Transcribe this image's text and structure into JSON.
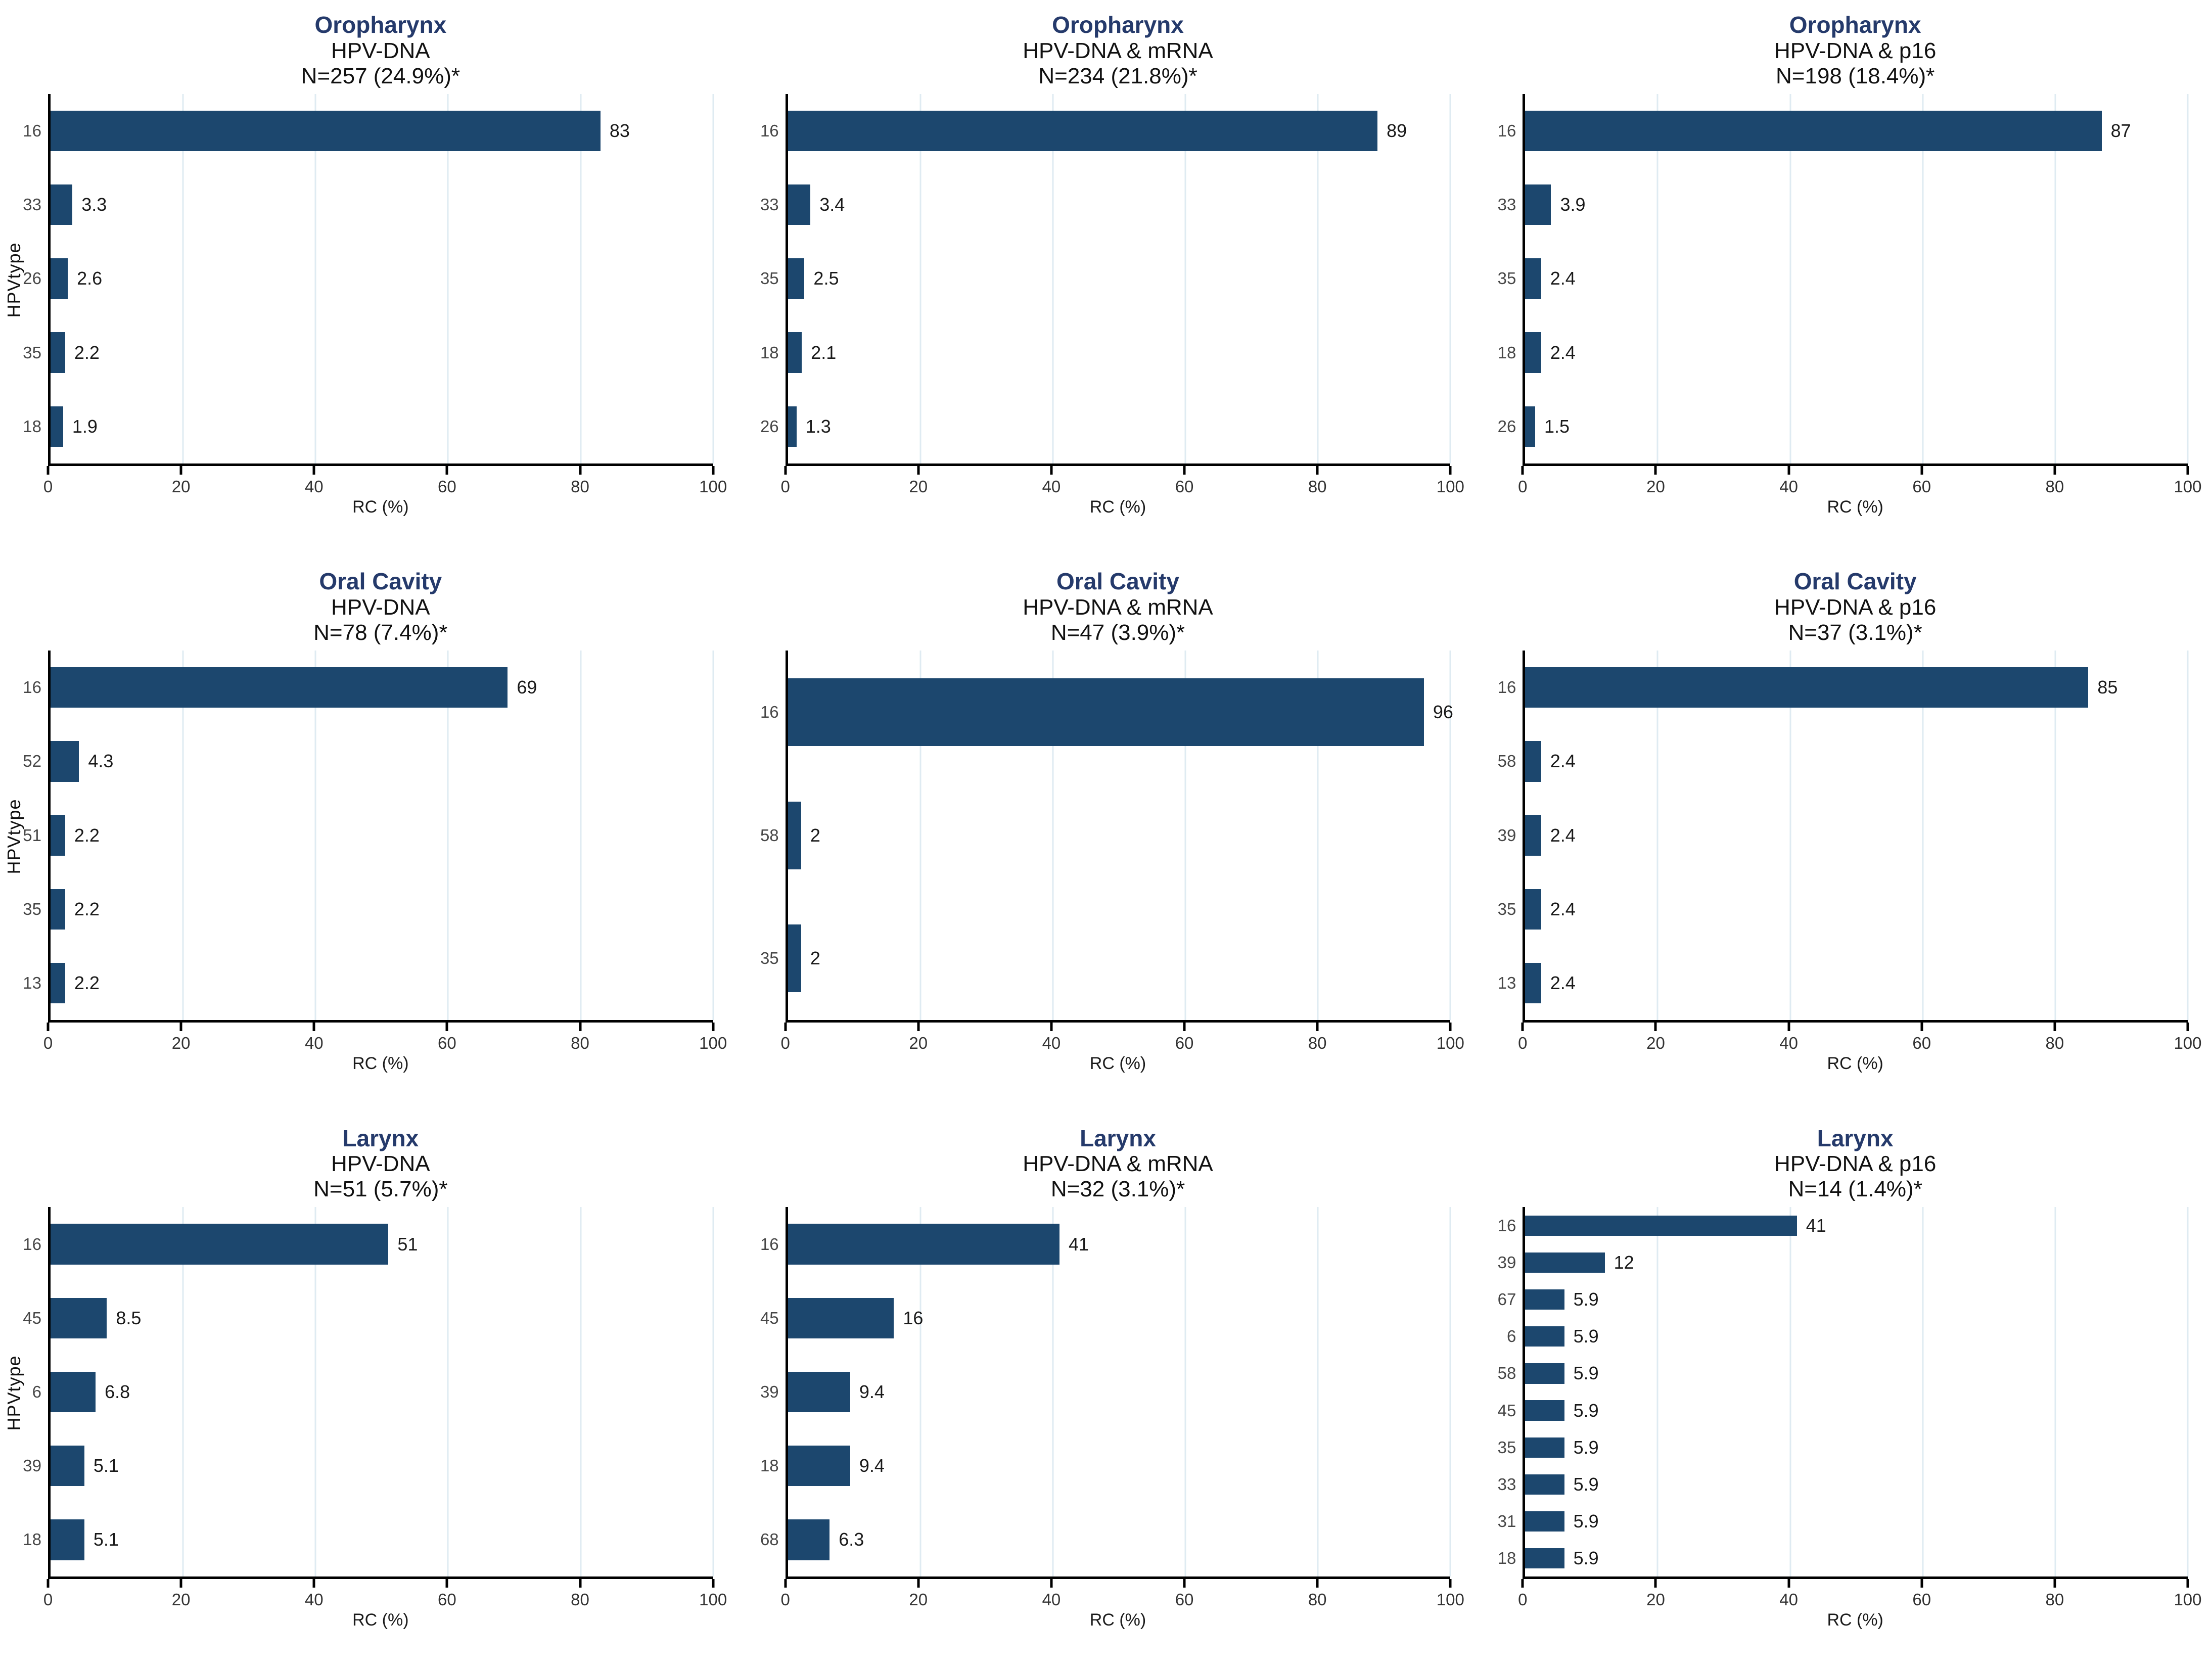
{
  "figure": {
    "background": "#ffffff",
    "bar_color": "#1C476E",
    "site_title_color": "#253A6B",
    "grid_color": "#DFEBF2",
    "axis_color": "#000000",
    "xticks": [
      0,
      20,
      40,
      60,
      80,
      100
    ],
    "xlim": [
      0,
      100
    ],
    "grid": "vertical-major-only",
    "legend": "none"
  },
  "chart_data": [
    {
      "type": "bar",
      "orientation": "horizontal",
      "site": "Oropharynx",
      "method": "HPV-DNA",
      "n_label": "N=257 (24.9%)*",
      "ylabel": "HPVtype",
      "xlabel": "RC (%)",
      "xlim": [
        0,
        100
      ],
      "categories": [
        "16",
        "33",
        "26",
        "35",
        "18"
      ],
      "values": [
        83,
        3.3,
        2.6,
        2.2,
        1.9
      ],
      "value_labels": [
        "83",
        "3.3",
        "2.6",
        "2.2",
        "1.9"
      ]
    },
    {
      "type": "bar",
      "orientation": "horizontal",
      "site": "Oropharynx",
      "method": "HPV-DNA & mRNA",
      "n_label": "N=234 (21.8%)*",
      "ylabel": "",
      "xlabel": "RC (%)",
      "xlim": [
        0,
        100
      ],
      "categories": [
        "16",
        "33",
        "35",
        "18",
        "26"
      ],
      "values": [
        89,
        3.4,
        2.5,
        2.1,
        1.3
      ],
      "value_labels": [
        "89",
        "3.4",
        "2.5",
        "2.1",
        "1.3"
      ]
    },
    {
      "type": "bar",
      "orientation": "horizontal",
      "site": "Oropharynx",
      "method": "HPV-DNA & p16",
      "n_label": "N=198 (18.4%)*",
      "ylabel": "",
      "xlabel": "RC (%)",
      "xlim": [
        0,
        100
      ],
      "categories": [
        "16",
        "33",
        "35",
        "18",
        "26"
      ],
      "values": [
        87,
        3.9,
        2.4,
        2.4,
        1.5
      ],
      "value_labels": [
        "87",
        "3.9",
        "2.4",
        "2.4",
        "1.5"
      ]
    },
    {
      "type": "bar",
      "orientation": "horizontal",
      "site": "Oral Cavity",
      "method": "HPV-DNA",
      "n_label": "N=78 (7.4%)*",
      "ylabel": "HPVtype",
      "xlabel": "RC (%)",
      "xlim": [
        0,
        100
      ],
      "categories": [
        "16",
        "52",
        "51",
        "35",
        "13"
      ],
      "values": [
        69,
        4.3,
        2.2,
        2.2,
        2.2
      ],
      "value_labels": [
        "69",
        "4.3",
        "2.2",
        "2.2",
        "2.2"
      ]
    },
    {
      "type": "bar",
      "orientation": "horizontal",
      "site": "Oral Cavity",
      "method": "HPV-DNA & mRNA",
      "n_label": "N=47 (3.9%)*",
      "ylabel": "",
      "xlabel": "RC (%)",
      "xlim": [
        0,
        100
      ],
      "categories": [
        "16",
        "58",
        "35"
      ],
      "values": [
        96,
        2,
        2
      ],
      "value_labels": [
        "96",
        "2",
        "2"
      ]
    },
    {
      "type": "bar",
      "orientation": "horizontal",
      "site": "Oral Cavity",
      "method": "HPV-DNA & p16",
      "n_label": "N=37 (3.1%)*",
      "ylabel": "",
      "xlabel": "RC (%)",
      "xlim": [
        0,
        100
      ],
      "categories": [
        "16",
        "58",
        "39",
        "35",
        "13"
      ],
      "values": [
        85,
        2.4,
        2.4,
        2.4,
        2.4
      ],
      "value_labels": [
        "85",
        "2.4",
        "2.4",
        "2.4",
        "2.4"
      ]
    },
    {
      "type": "bar",
      "orientation": "horizontal",
      "site": "Larynx",
      "method": "HPV-DNA",
      "n_label": "N=51 (5.7%)*",
      "ylabel": "HPVtype",
      "xlabel": "RC (%)",
      "xlim": [
        0,
        100
      ],
      "categories": [
        "16",
        "45",
        "6",
        "39",
        "18"
      ],
      "values": [
        51,
        8.5,
        6.8,
        5.1,
        5.1
      ],
      "value_labels": [
        "51",
        "8.5",
        "6.8",
        "5.1",
        "5.1"
      ]
    },
    {
      "type": "bar",
      "orientation": "horizontal",
      "site": "Larynx",
      "method": "HPV-DNA & mRNA",
      "n_label": "N=32 (3.1%)*",
      "ylabel": "",
      "xlabel": "RC (%)",
      "xlim": [
        0,
        100
      ],
      "categories": [
        "16",
        "45",
        "39",
        "18",
        "68"
      ],
      "values": [
        41,
        16,
        9.4,
        9.4,
        6.3
      ],
      "value_labels": [
        "41",
        "16",
        "9.4",
        "9.4",
        "6.3"
      ]
    },
    {
      "type": "bar",
      "orientation": "horizontal",
      "site": "Larynx",
      "method": "HPV-DNA & p16",
      "n_label": "N=14 (1.4%)*",
      "ylabel": "",
      "xlabel": "RC (%)",
      "xlim": [
        0,
        100
      ],
      "categories": [
        "16",
        "39",
        "67",
        "6",
        "58",
        "45",
        "35",
        "33",
        "31",
        "18"
      ],
      "values": [
        41,
        12,
        5.9,
        5.9,
        5.9,
        5.9,
        5.9,
        5.9,
        5.9,
        5.9
      ],
      "value_labels": [
        "41",
        "12",
        "5.9",
        "5.9",
        "5.9",
        "5.9",
        "5.9",
        "5.9",
        "5.9",
        "5.9"
      ]
    }
  ]
}
